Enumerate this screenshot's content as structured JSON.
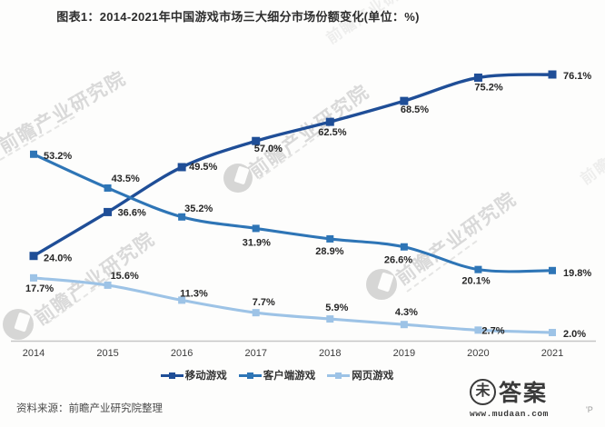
{
  "title": "图表1：2014-2021年中国游戏市场三大细分市场份额变化(单位：%)",
  "source_note": "资料来源：前瞻产业研究院整理",
  "watermark": {
    "text": "前瞻产业研究院"
  },
  "brand_badge": {
    "glyph": "未",
    "name": "答案",
    "url": "www.mudaan.com"
  },
  "stray_text": "'P",
  "colors": {
    "mobile": "#1f4e97",
    "client": "#2e75b6",
    "web": "#9dc3e6",
    "axis": "#c6c6c6",
    "tick_label": "#3d3d3d",
    "data_label": "#262626",
    "watermark": "#7d7d7d"
  },
  "chart_data": {
    "type": "line",
    "title": "图表1：2014-2021年中国游戏市场三大细分市场份额变化(单位：%)",
    "unit": "%",
    "categories": [
      "2014",
      "2015",
      "2016",
      "2017",
      "2018",
      "2019",
      "2020",
      "2021"
    ],
    "series": [
      {
        "name": "移动游戏",
        "color_key": "mobile",
        "values": [
          24.0,
          36.6,
          49.5,
          57.0,
          62.5,
          68.5,
          75.2,
          76.1
        ]
      },
      {
        "name": "客户端游戏",
        "color_key": "client",
        "values": [
          53.2,
          43.5,
          35.2,
          31.9,
          28.9,
          26.6,
          20.1,
          19.8
        ]
      },
      {
        "name": "网页游戏",
        "color_key": "web",
        "values": [
          17.7,
          15.6,
          11.3,
          7.7,
          5.9,
          4.3,
          2.7,
          2.0
        ]
      }
    ],
    "ylim": [
      0,
      80
    ],
    "grid": false,
    "legend_position": "bottom",
    "data_labels": true,
    "value_format": "{v}%"
  }
}
